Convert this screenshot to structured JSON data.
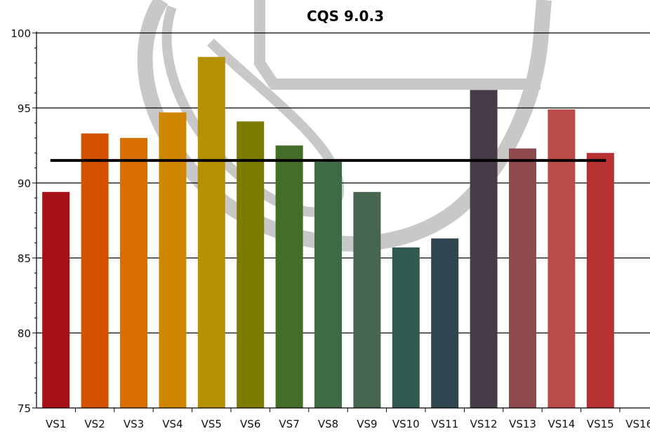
{
  "chart_data": {
    "type": "bar",
    "title": "CQS 9.0.3",
    "xlabel": "",
    "ylabel": "",
    "ylim": [
      75,
      100
    ],
    "yticks": [
      75,
      80,
      85,
      90,
      95,
      100
    ],
    "grid": true,
    "categories": [
      "VS1",
      "VS2",
      "VS3",
      "VS4",
      "VS5",
      "VS6",
      "VS7",
      "VS8",
      "VS9",
      "VS10",
      "VS11",
      "VS12",
      "VS13",
      "VS14",
      "VS15",
      "VS16"
    ],
    "values": [
      89.4,
      93.3,
      93.0,
      94.7,
      98.4,
      94.1,
      92.5,
      91.4,
      89.4,
      85.7,
      86.3,
      96.2,
      92.3,
      94.9,
      92.0,
      null
    ],
    "colors": [
      "#a50f15",
      "#d45100",
      "#d96f00",
      "#d18600",
      "#b59000",
      "#7d7c00",
      "#446e28",
      "#3c6b44",
      "#46664f",
      "#325951",
      "#2f4650",
      "#473b47",
      "#8e4a4e",
      "#bb4b48",
      "#b63131",
      ""
    ],
    "average_line": 91.5
  }
}
